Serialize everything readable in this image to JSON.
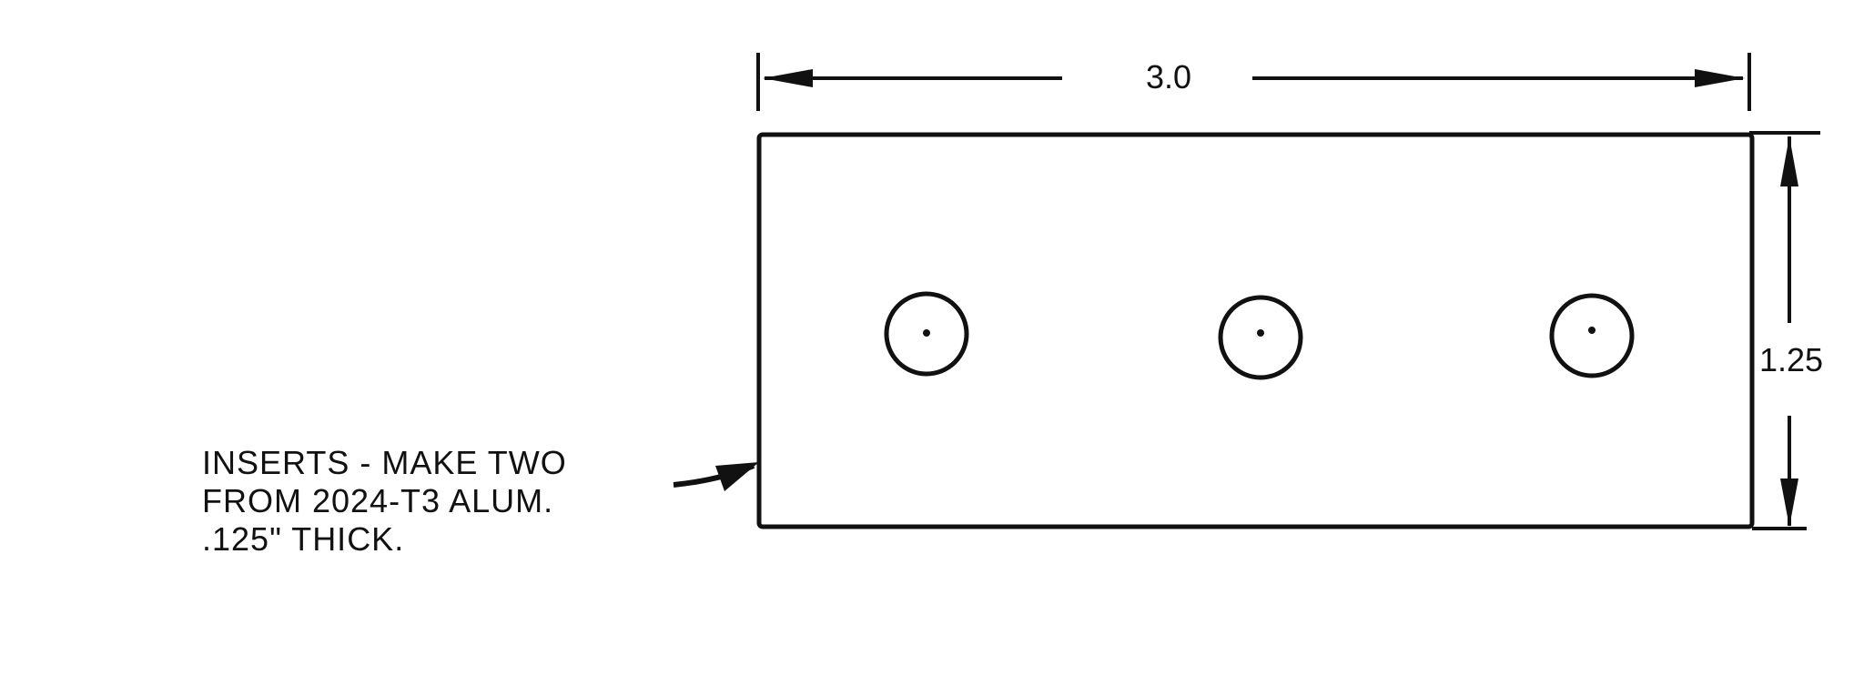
{
  "dimensions": {
    "width_label": "3.0",
    "height_label": "1.25"
  },
  "part": {
    "hole_count": 3
  },
  "note": {
    "lines": [
      "INSERTS - MAKE TWO",
      "FROM 2024-T3 ALUM.",
      ".125\" THICK."
    ]
  },
  "colors": {
    "ink": "#111111",
    "paper": "#ffffff"
  }
}
